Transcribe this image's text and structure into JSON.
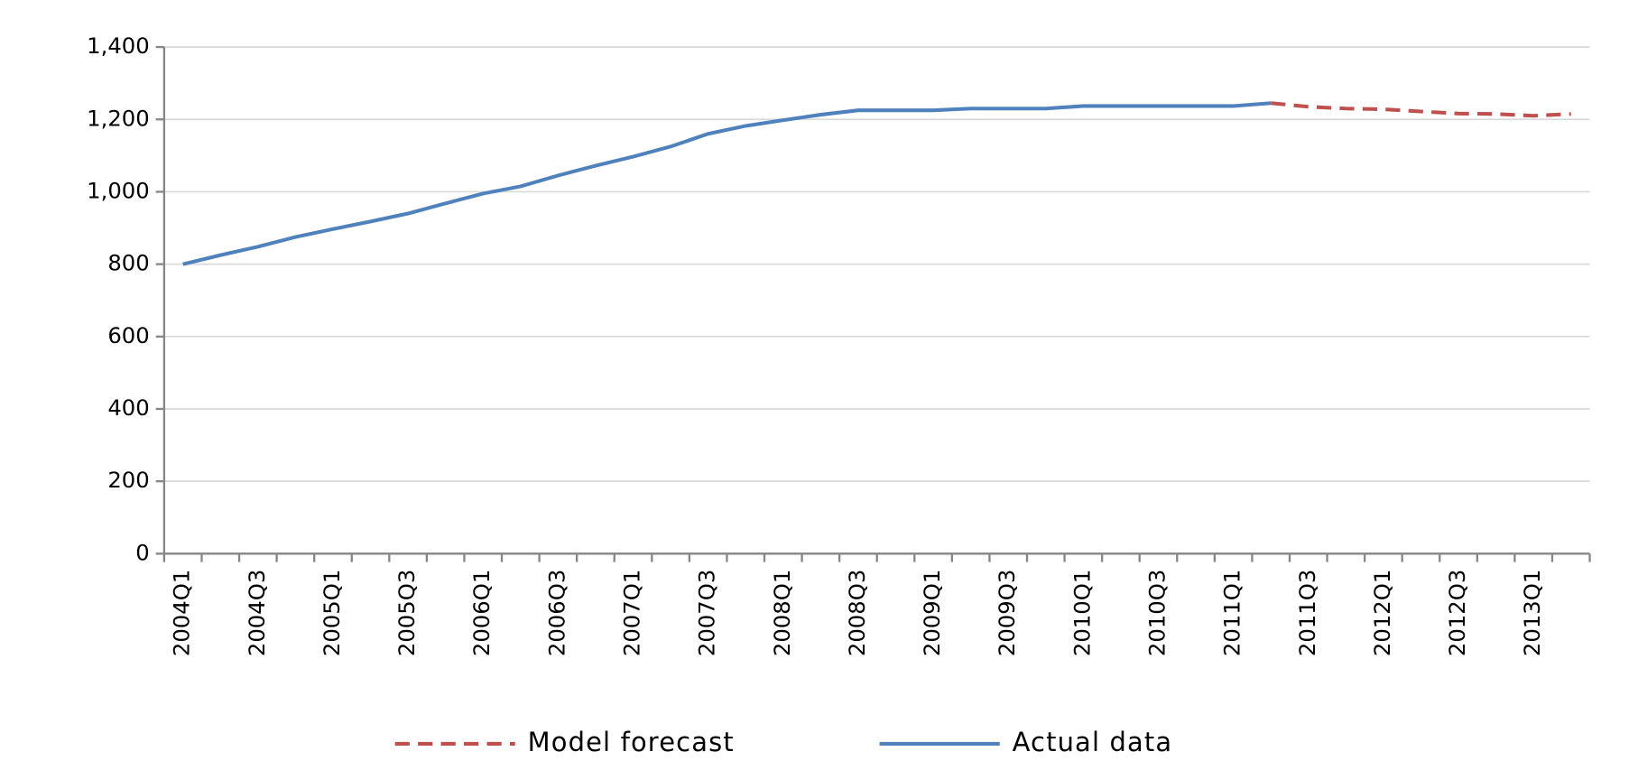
{
  "chart_data": {
    "type": "line",
    "categories": [
      "2004Q1",
      null,
      "2004Q3",
      null,
      "2005Q1",
      null,
      "2005Q3",
      null,
      "2006Q1",
      null,
      "2006Q3",
      null,
      "2007Q1",
      null,
      "2007Q3",
      null,
      "2008Q1",
      null,
      "2008Q3",
      null,
      "2009Q1",
      null,
      "2009Q3",
      null,
      "2010Q1",
      null,
      "2010Q3",
      null,
      "2011Q1",
      null,
      "2011Q3",
      null,
      "2012Q1",
      null,
      "2012Q3",
      null,
      "2013Q1",
      null
    ],
    "series": [
      {
        "name": "Model forecast",
        "color": "#c0504d",
        "dashed": true,
        "values": [
          null,
          null,
          null,
          null,
          null,
          null,
          null,
          null,
          null,
          null,
          null,
          null,
          null,
          null,
          null,
          null,
          null,
          null,
          null,
          null,
          null,
          null,
          null,
          null,
          null,
          null,
          null,
          null,
          null,
          1245,
          1235,
          1230,
          1228,
          1222,
          1216,
          1215,
          1210,
          1215
        ]
      },
      {
        "name": "Actual data",
        "color": "#4f81bd",
        "dashed": false,
        "values": [
          800,
          825,
          848,
          875,
          897,
          918,
          940,
          968,
          995,
          1015,
          1045,
          1072,
          1097,
          1125,
          1160,
          1182,
          1198,
          1213,
          1225,
          1225,
          1225,
          1230,
          1230,
          1230,
          1237,
          1237,
          1237,
          1237,
          1237,
          1245,
          null,
          null,
          null,
          null,
          null,
          null,
          null,
          null
        ]
      }
    ],
    "ylim": [
      0,
      1400
    ],
    "yticks": [
      0,
      200,
      400,
      600,
      800,
      {
        "value": 1000,
        "label": "1,000"
      },
      {
        "value": 1200,
        "label": "1,200"
      },
      {
        "value": 1400,
        "label": "1,400"
      }
    ],
    "grid": true,
    "legend": "bottom"
  }
}
